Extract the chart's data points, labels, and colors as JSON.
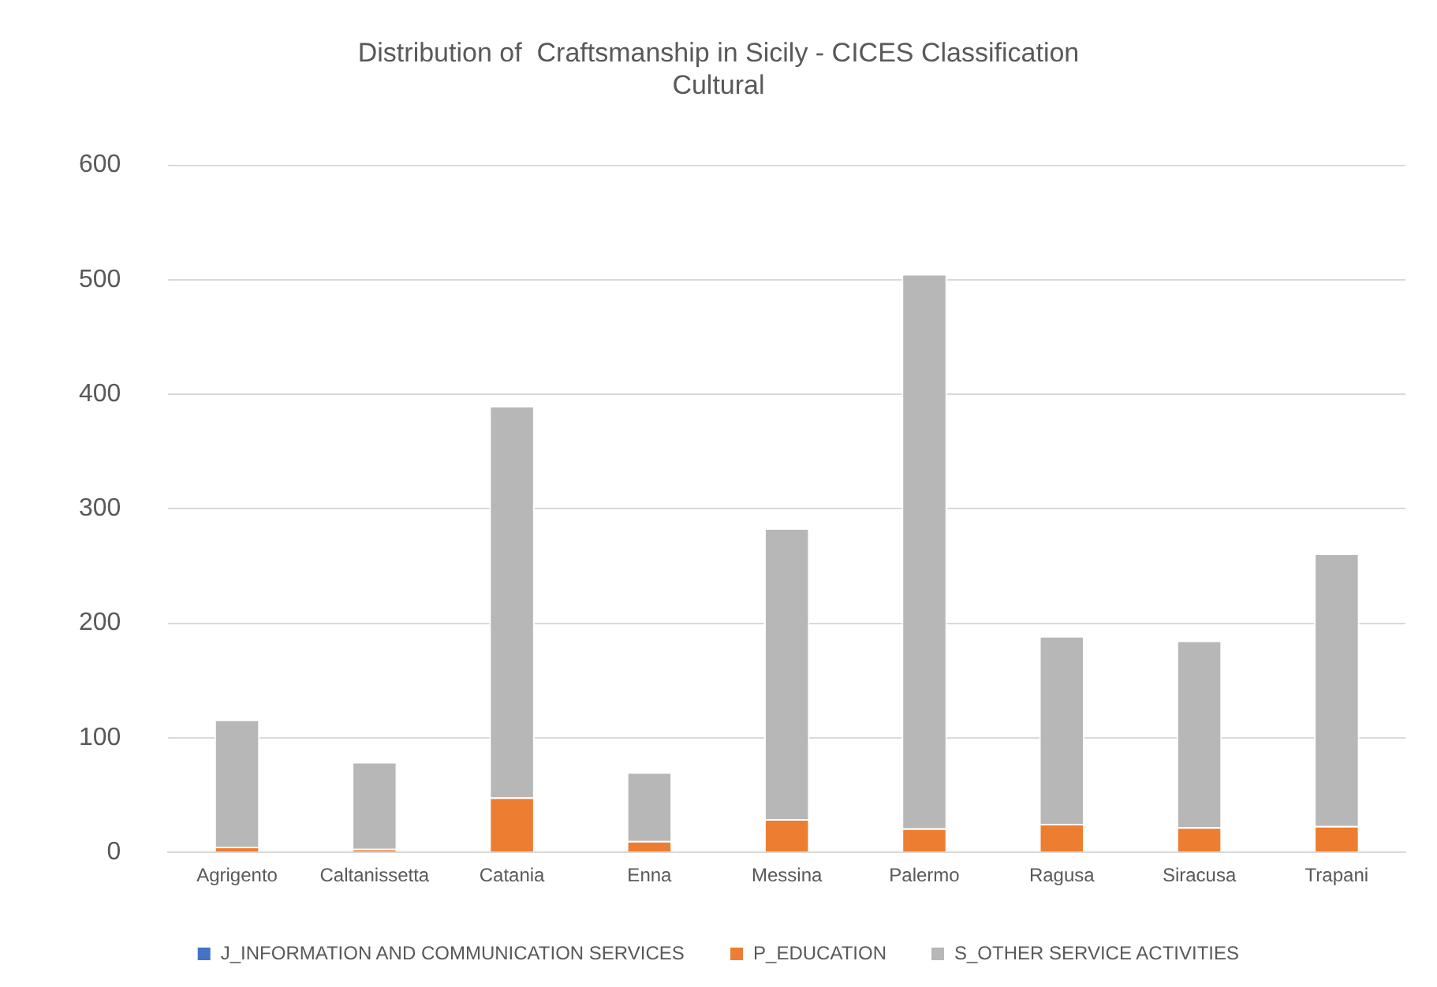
{
  "chart_data": {
    "type": "bar",
    "title": "Distribution of  Craftsmanship in Sicily - CICES Classification\nCultural",
    "categories": [
      "Agrigento",
      "Caltanissetta",
      "Catania",
      "Enna",
      "Messina",
      "Palermo",
      "Ragusa",
      "Siracusa",
      "Trapani"
    ],
    "stacked": true,
    "series": [
      {
        "name": "J_INFORMATION AND COMMUNICATION SERVICES",
        "color": "#4472c4",
        "values": [
          0,
          0,
          0,
          0,
          0,
          0,
          0,
          0,
          0
        ]
      },
      {
        "name": "P_EDUCATION",
        "color": "#ed7d31",
        "values": [
          5,
          3,
          48,
          10,
          29,
          21,
          25,
          22,
          23
        ]
      },
      {
        "name": "S_OTHER SERVICE ACTIVITIES",
        "color": "#b7b7b7",
        "values": [
          111,
          76,
          342,
          60,
          254,
          484,
          164,
          163,
          238
        ]
      }
    ],
    "ylim": [
      0,
      600
    ],
    "yticks": [
      0,
      100,
      200,
      300,
      400,
      500,
      600
    ],
    "grid": "y",
    "legend": "bottom"
  }
}
